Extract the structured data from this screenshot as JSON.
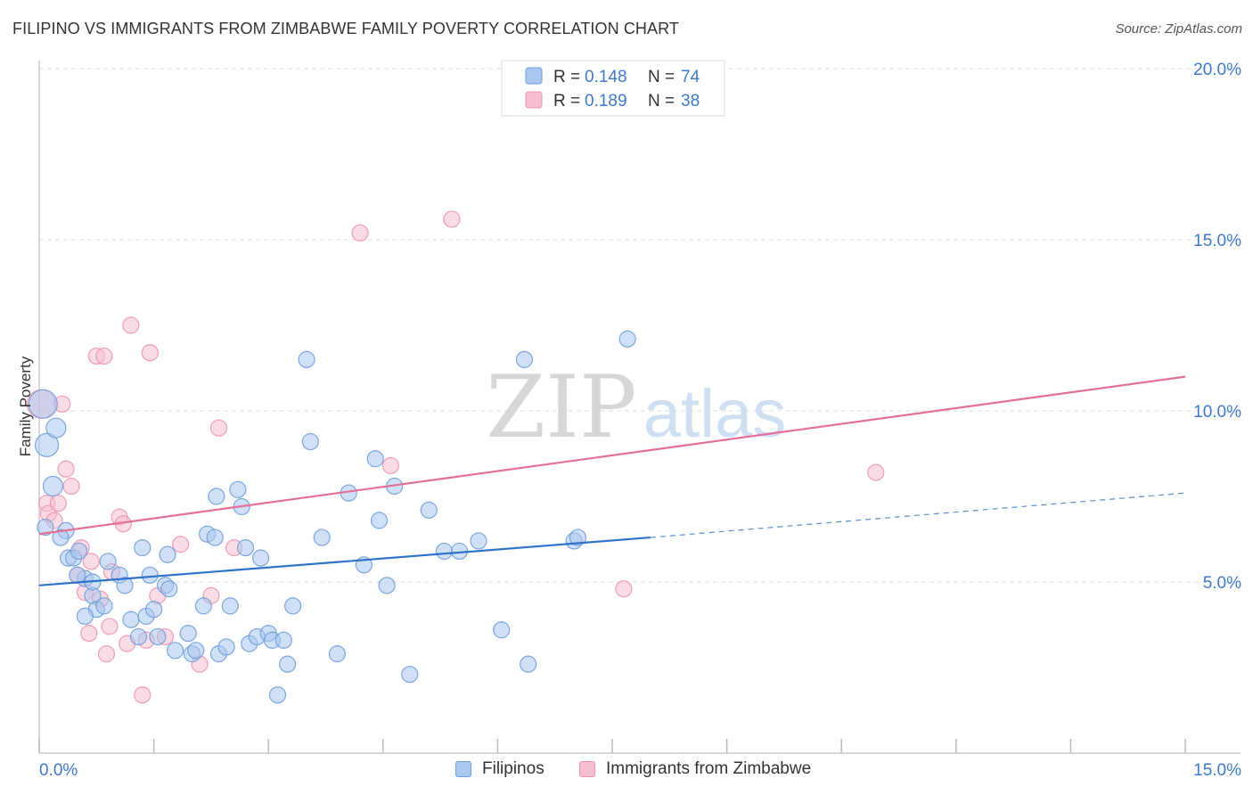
{
  "title": "FILIPINO VS IMMIGRANTS FROM ZIMBABWE FAMILY POVERTY CORRELATION CHART",
  "source": "Source: ZipAtlas.com",
  "watermark": {
    "zip": "ZIP",
    "atlas": "atlas"
  },
  "colors": {
    "blue_fill": "#a9c7ef",
    "blue_stroke": "#6f9fdc",
    "blue_line": "#2f72c9",
    "pink_fill": "#f6bfd0",
    "pink_stroke": "#ec93b0",
    "pink_line": "#e46f98",
    "value_text": "#3d79c8",
    "grid": "#dddddd"
  },
  "legend": {
    "r_label": "R =",
    "n_label": "N =",
    "series": [
      {
        "r": "0.148",
        "n": "74"
      },
      {
        "r": "0.189",
        "n": "38"
      }
    ]
  },
  "chart_data": {
    "type": "scatter",
    "ylabel": "Family Poverty",
    "xlim": [
      0,
      15
    ],
    "ylim": [
      0,
      20
    ],
    "x_tick_labels": [
      "0.0%",
      "15.0%"
    ],
    "y_tick_labels": [
      "5.0%",
      "10.0%",
      "15.0%",
      "20.0%"
    ],
    "y_ticks": [
      5,
      10,
      15,
      20
    ],
    "x_minor_ticks": [
      0,
      1.5,
      3,
      4.5,
      6,
      7.5,
      9,
      10.5,
      12,
      13.5,
      15
    ],
    "series": [
      {
        "name": "Filipinos",
        "trend": {
          "x0": 0,
          "y0": 4.9,
          "x1": 8,
          "y1": 6.3,
          "dash_to_x": 15,
          "dash_to_y": 7.6
        },
        "points": [
          [
            0.05,
            10.2
          ],
          [
            0.1,
            9.0
          ],
          [
            0.22,
            9.5
          ],
          [
            0.18,
            7.8
          ],
          [
            0.35,
            6.5
          ],
          [
            0.28,
            6.3
          ],
          [
            0.38,
            5.7
          ],
          [
            0.45,
            5.7
          ],
          [
            0.52,
            5.9
          ],
          [
            0.6,
            5.1
          ],
          [
            0.5,
            5.2
          ],
          [
            0.7,
            4.6
          ],
          [
            0.75,
            4.2
          ],
          [
            0.7,
            5.0
          ],
          [
            0.9,
            5.6
          ],
          [
            0.85,
            4.3
          ],
          [
            1.05,
            5.2
          ],
          [
            1.12,
            4.9
          ],
          [
            1.2,
            3.9
          ],
          [
            1.3,
            3.4
          ],
          [
            1.35,
            6.0
          ],
          [
            1.4,
            4.0
          ],
          [
            1.5,
            4.2
          ],
          [
            1.45,
            5.2
          ],
          [
            1.55,
            3.4
          ],
          [
            1.65,
            4.9
          ],
          [
            1.7,
            4.8
          ],
          [
            1.68,
            5.8
          ],
          [
            1.78,
            3.0
          ],
          [
            1.95,
            3.5
          ],
          [
            2.0,
            2.9
          ],
          [
            2.05,
            3.0
          ],
          [
            2.15,
            4.3
          ],
          [
            2.2,
            6.4
          ],
          [
            2.3,
            6.3
          ],
          [
            2.35,
            2.9
          ],
          [
            2.32,
            7.5
          ],
          [
            2.45,
            3.1
          ],
          [
            2.5,
            4.3
          ],
          [
            2.6,
            7.7
          ],
          [
            2.65,
            7.2
          ],
          [
            2.7,
            6.0
          ],
          [
            2.75,
            3.2
          ],
          [
            2.85,
            3.4
          ],
          [
            2.9,
            5.7
          ],
          [
            3.0,
            3.5
          ],
          [
            3.05,
            3.3
          ],
          [
            3.12,
            1.7
          ],
          [
            3.2,
            3.3
          ],
          [
            3.25,
            2.6
          ],
          [
            3.32,
            4.3
          ],
          [
            3.5,
            11.5
          ],
          [
            3.55,
            9.1
          ],
          [
            3.7,
            6.3
          ],
          [
            3.9,
            2.9
          ],
          [
            4.05,
            7.6
          ],
          [
            4.25,
            5.5
          ],
          [
            4.4,
            8.6
          ],
          [
            4.45,
            6.8
          ],
          [
            4.55,
            4.9
          ],
          [
            4.65,
            7.8
          ],
          [
            4.85,
            2.3
          ],
          [
            5.1,
            7.1
          ],
          [
            5.3,
            5.9
          ],
          [
            5.5,
            5.9
          ],
          [
            5.75,
            6.2
          ],
          [
            6.05,
            3.6
          ],
          [
            6.35,
            11.5
          ],
          [
            6.4,
            2.6
          ],
          [
            7.0,
            6.2
          ],
          [
            7.05,
            6.3
          ],
          [
            7.7,
            12.1
          ],
          [
            0.08,
            6.6
          ],
          [
            0.6,
            4.0
          ]
        ],
        "radii": [
          16,
          13,
          11,
          11,
          9,
          9,
          9,
          9,
          9,
          9,
          9,
          9,
          9,
          9,
          9,
          9,
          9,
          9,
          9,
          9,
          9,
          9,
          9,
          9,
          9,
          9,
          9,
          9,
          9,
          9,
          9,
          9,
          9,
          9,
          9,
          9,
          9,
          9,
          9,
          9,
          9,
          9,
          9,
          9,
          9,
          9,
          9,
          9,
          9,
          9,
          9,
          9,
          9,
          9,
          9,
          9,
          9,
          9,
          9,
          9,
          9,
          9,
          9,
          9,
          9,
          9,
          9,
          9,
          9,
          9,
          9,
          9,
          9,
          9
        ]
      },
      {
        "name": "Immigrants from Zimbabwe",
        "trend": {
          "x0": 0,
          "y0": 6.4,
          "x1": 15,
          "y1": 11.0
        },
        "points": [
          [
            0.03,
            10.2
          ],
          [
            0.1,
            7.3
          ],
          [
            0.12,
            7.0
          ],
          [
            0.2,
            6.8
          ],
          [
            0.25,
            7.3
          ],
          [
            0.3,
            10.2
          ],
          [
            0.35,
            8.3
          ],
          [
            0.42,
            7.8
          ],
          [
            0.5,
            5.2
          ],
          [
            0.55,
            6.0
          ],
          [
            0.6,
            4.7
          ],
          [
            0.65,
            3.5
          ],
          [
            0.68,
            5.6
          ],
          [
            0.75,
            11.6
          ],
          [
            0.8,
            4.5
          ],
          [
            0.85,
            11.6
          ],
          [
            0.88,
            2.9
          ],
          [
            0.92,
            3.7
          ],
          [
            0.95,
            5.3
          ],
          [
            1.05,
            6.9
          ],
          [
            1.1,
            6.7
          ],
          [
            1.15,
            3.2
          ],
          [
            1.2,
            12.5
          ],
          [
            1.35,
            1.7
          ],
          [
            1.4,
            3.3
          ],
          [
            1.45,
            11.7
          ],
          [
            1.55,
            4.6
          ],
          [
            1.65,
            3.4
          ],
          [
            1.85,
            6.1
          ],
          [
            2.1,
            2.6
          ],
          [
            2.25,
            4.6
          ],
          [
            2.35,
            9.5
          ],
          [
            2.55,
            6.0
          ],
          [
            4.2,
            15.2
          ],
          [
            4.6,
            8.4
          ],
          [
            5.4,
            15.6
          ],
          [
            7.65,
            4.8
          ],
          [
            10.95,
            8.2
          ]
        ],
        "radii": [
          16,
          9,
          9,
          9,
          9,
          9,
          9,
          9,
          9,
          9,
          9,
          9,
          9,
          9,
          9,
          9,
          9,
          9,
          9,
          9,
          9,
          9,
          9,
          9,
          9,
          9,
          9,
          9,
          9,
          9,
          9,
          9,
          9,
          9,
          9,
          9,
          9,
          9
        ]
      }
    ]
  }
}
